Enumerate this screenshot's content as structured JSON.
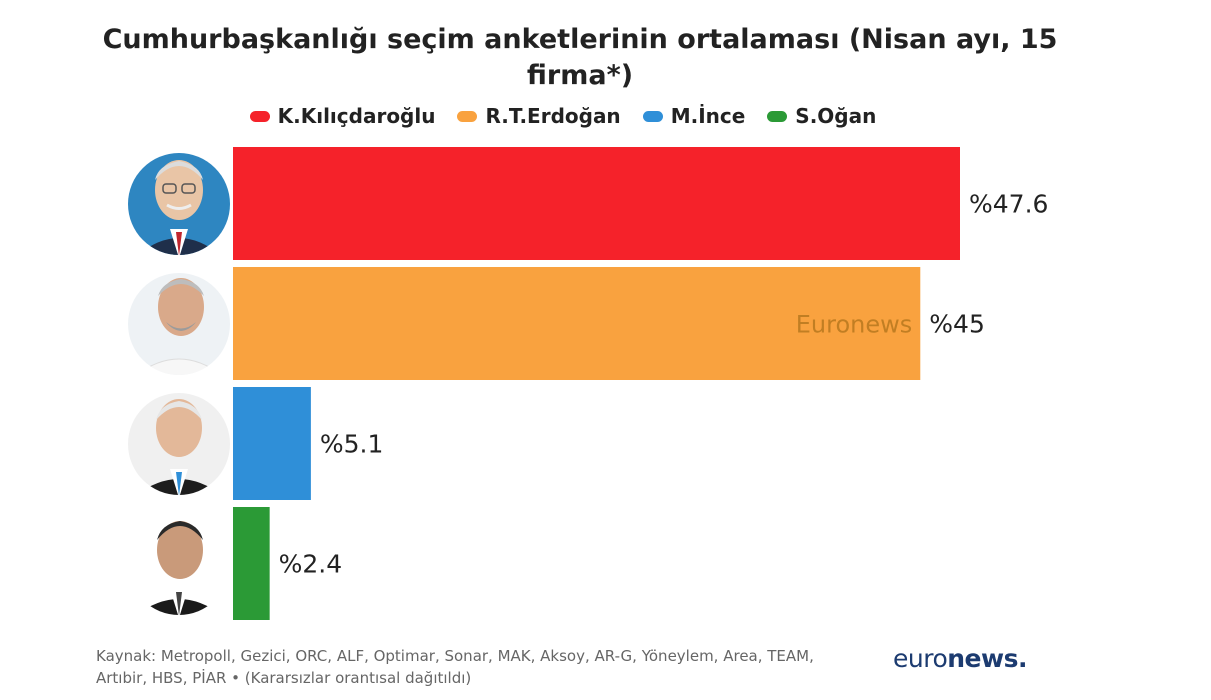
{
  "title": "Cumhurbaşkanlığı seçim anketlerinin ortalaması (Nisan ayı, 15 firma*)",
  "legend": [
    {
      "name": "K.Kılıçdaroğlu",
      "color": "#f5222a"
    },
    {
      "name": "R.T.Erdoğan",
      "color": "#f9a23f"
    },
    {
      "name": "M.İnce",
      "color": "#2f8fd8"
    },
    {
      "name": "S.Oğan",
      "color": "#2b9a36"
    }
  ],
  "chart_data": {
    "type": "bar",
    "orientation": "horizontal",
    "categories": [
      "K.Kılıçdaroğlu",
      "R.T.Erdoğan",
      "M.İnce",
      "S.Oğan"
    ],
    "values": [
      47.6,
      45,
      5.1,
      2.4
    ],
    "value_labels": [
      "%47.6",
      "%45",
      "%5.1",
      "%2.4"
    ],
    "colors": [
      "#f5222a",
      "#f9a23f",
      "#2f8fd8",
      "#2b9a36"
    ],
    "xlim": [
      0,
      47.6
    ],
    "grid": false,
    "legend_position": "top"
  },
  "watermark": "Euronews",
  "footer": {
    "source_line1": "Kaynak: Metropoll, Gezici, ORC, ALF, Optimar, Sonar, MAK, Aksoy, AR-G, Yöneylem, Area, TEAM,",
    "source_line2": "Artıbir, HBS, PİAR • (Kararsızlar orantısal dağıtıldı)"
  },
  "logo": {
    "part1": "euro",
    "part2": "news."
  }
}
